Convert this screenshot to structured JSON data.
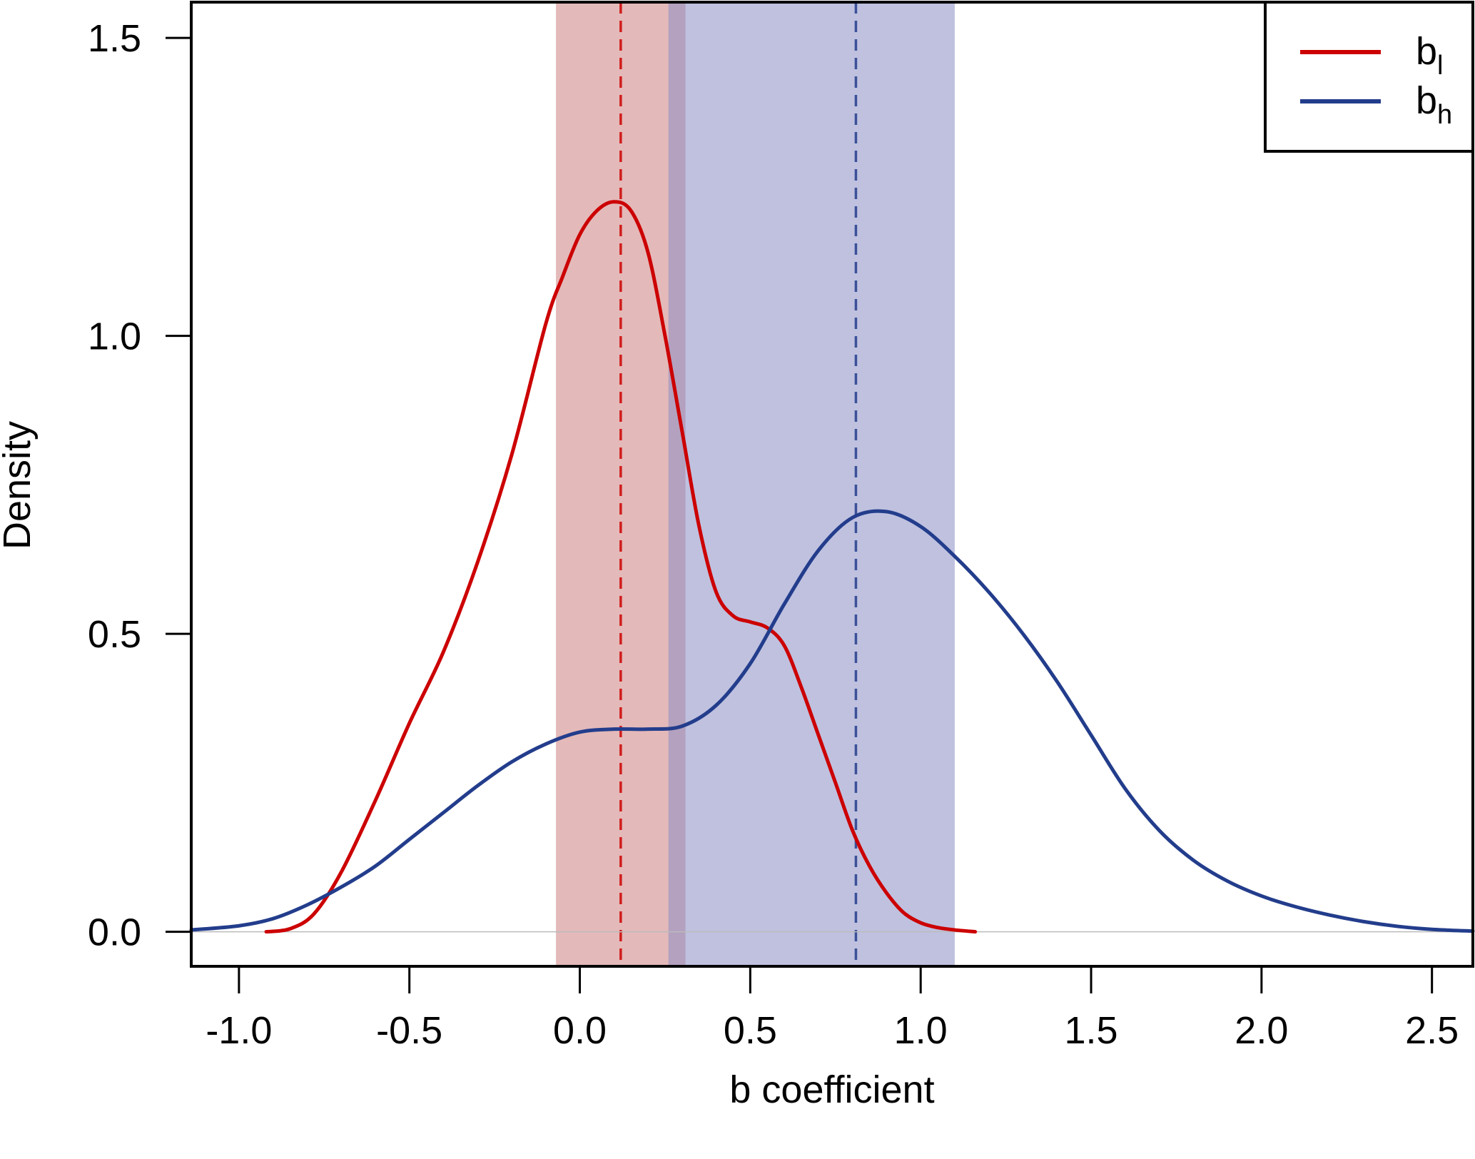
{
  "chart_data": {
    "type": "line",
    "title": "",
    "xlabel": "b coefficient",
    "ylabel": "Density",
    "xlim": [
      -1.14,
      2.62
    ],
    "ylim": [
      -0.058,
      1.56
    ],
    "xticks": [
      "-1.0",
      "-0.5",
      "0.0",
      "0.5",
      "1.0",
      "1.5",
      "2.0",
      "2.5"
    ],
    "xtick_values": [
      -1.0,
      -0.5,
      0.0,
      0.5,
      1.0,
      1.5,
      2.0,
      2.5
    ],
    "yticks": [
      "0.0",
      "0.5",
      "1.0",
      "1.5"
    ],
    "ytick_values": [
      0.0,
      0.5,
      1.0,
      1.5
    ],
    "grid": false,
    "legend_position": "top-right",
    "baseline": 0.0,
    "series": [
      {
        "name": "b",
        "subscript": "l",
        "color": "#cc0000",
        "mean": 0.12,
        "interval": [
          -0.07,
          0.31
        ],
        "band_color": "#cd8080",
        "x": [
          -0.92,
          -0.85,
          -0.78,
          -0.7,
          -0.6,
          -0.5,
          -0.4,
          -0.3,
          -0.2,
          -0.1,
          -0.05,
          0.0,
          0.05,
          0.1,
          0.15,
          0.2,
          0.25,
          0.3,
          0.35,
          0.4,
          0.45,
          0.5,
          0.55,
          0.6,
          0.65,
          0.7,
          0.75,
          0.8,
          0.85,
          0.9,
          0.95,
          1.0,
          1.05,
          1.1,
          1.16
        ],
        "y": [
          0.0,
          0.005,
          0.03,
          0.1,
          0.22,
          0.35,
          0.47,
          0.62,
          0.8,
          1.02,
          1.1,
          1.17,
          1.21,
          1.225,
          1.21,
          1.14,
          1.0,
          0.84,
          0.68,
          0.57,
          0.53,
          0.52,
          0.51,
          0.48,
          0.41,
          0.33,
          0.25,
          0.17,
          0.11,
          0.065,
          0.032,
          0.015,
          0.007,
          0.003,
          0.0
        ]
      },
      {
        "name": "b",
        "subscript": "h",
        "color": "#233d8c",
        "mean": 0.81,
        "interval": [
          0.26,
          1.1
        ],
        "band_color": "#8a8ec4",
        "x": [
          -1.14,
          -1.0,
          -0.9,
          -0.8,
          -0.7,
          -0.6,
          -0.5,
          -0.4,
          -0.3,
          -0.2,
          -0.1,
          0.0,
          0.1,
          0.2,
          0.3,
          0.4,
          0.5,
          0.6,
          0.7,
          0.8,
          0.9,
          1.0,
          1.1,
          1.2,
          1.3,
          1.4,
          1.5,
          1.6,
          1.7,
          1.8,
          1.9,
          2.0,
          2.1,
          2.2,
          2.3,
          2.4,
          2.5,
          2.62
        ],
        "y": [
          0.003,
          0.01,
          0.022,
          0.045,
          0.075,
          0.11,
          0.155,
          0.2,
          0.245,
          0.285,
          0.315,
          0.335,
          0.34,
          0.34,
          0.345,
          0.38,
          0.45,
          0.55,
          0.64,
          0.695,
          0.705,
          0.68,
          0.63,
          0.57,
          0.5,
          0.42,
          0.33,
          0.24,
          0.17,
          0.12,
          0.085,
          0.06,
          0.042,
          0.028,
          0.017,
          0.009,
          0.004,
          0.001
        ]
      }
    ]
  }
}
